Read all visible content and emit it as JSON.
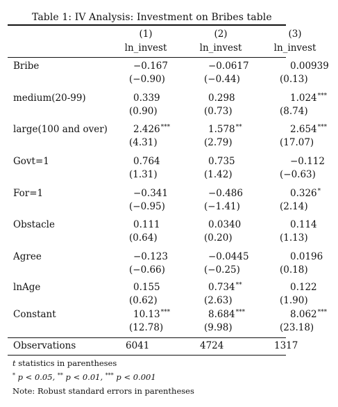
{
  "caption": "Table 1: IV Analysis: Investment on Bribes table",
  "columns": [
    {
      "number": "(1)",
      "name": "ln_invest"
    },
    {
      "number": "(2)",
      "name": "ln_invest"
    },
    {
      "number": "(3)",
      "name": "ln_invest"
    }
  ],
  "rows": [
    {
      "label": "Bribe",
      "coef": [
        [
          "−0.167",
          ""
        ],
        [
          "−0.0617",
          ""
        ],
        [
          "0.00939",
          ""
        ]
      ],
      "tstat": [
        "(−0.90)",
        "(−0.44)",
        "(0.13)"
      ]
    },
    {
      "label": "medium(20-99)",
      "coef": [
        [
          "0.339",
          ""
        ],
        [
          "0.298",
          ""
        ],
        [
          "1.024",
          "***"
        ]
      ],
      "tstat": [
        "(0.90)",
        "(0.73)",
        "(8.74)"
      ]
    },
    {
      "label": "large(100 and over)",
      "coef": [
        [
          "2.426",
          "***"
        ],
        [
          "1.578",
          "**"
        ],
        [
          "2.654",
          "***"
        ]
      ],
      "tstat": [
        "(4.31)",
        "(2.79)",
        "(17.07)"
      ]
    },
    {
      "label": "Govt=1",
      "coef": [
        [
          "0.764",
          ""
        ],
        [
          "0.735",
          ""
        ],
        [
          "−0.112",
          ""
        ]
      ],
      "tstat": [
        "(1.31)",
        "(1.42)",
        "(−0.63)"
      ]
    },
    {
      "label": "For=1",
      "coef": [
        [
          "−0.341",
          ""
        ],
        [
          "−0.486",
          ""
        ],
        [
          "0.326",
          "*"
        ]
      ],
      "tstat": [
        "(−0.95)",
        "(−1.41)",
        "(2.14)"
      ]
    },
    {
      "label": "Obstacle",
      "coef": [
        [
          "0.111",
          ""
        ],
        [
          "0.0340",
          ""
        ],
        [
          "0.114",
          ""
        ]
      ],
      "tstat": [
        "(0.64)",
        "(0.20)",
        "(1.13)"
      ]
    },
    {
      "label": "Agree",
      "coef": [
        [
          "−0.123",
          ""
        ],
        [
          "−0.0445",
          ""
        ],
        [
          "0.0196",
          ""
        ]
      ],
      "tstat": [
        "(−0.66)",
        "(−0.25)",
        "(0.18)"
      ]
    },
    {
      "label": "lnAge",
      "coef": [
        [
          "0.155",
          ""
        ],
        [
          "0.734",
          "**"
        ],
        [
          "0.122",
          ""
        ]
      ],
      "tstat": [
        "(0.62)",
        "(2.63)",
        "(1.90)"
      ]
    },
    {
      "label": "Constant",
      "coef": [
        [
          "10.13",
          "***"
        ],
        [
          "8.684",
          "***"
        ],
        [
          "8.062",
          "***"
        ]
      ],
      "tstat": [
        "(12.78)",
        "(9.98)",
        "(23.18)"
      ]
    }
  ],
  "observations": {
    "label": "Observations",
    "values": [
      "6041",
      "4724",
      "1317"
    ]
  },
  "notes": {
    "line1_symbol": "t",
    "line1_text": " statistics in parentheses",
    "line2": [
      {
        "sup": "*",
        "text": " p < 0.05, "
      },
      {
        "sup": "**",
        "text": " p < 0.01, "
      },
      {
        "sup": "***",
        "text": " p < 0.001"
      }
    ],
    "line3": "Note: Robust standard errors in parentheses"
  }
}
